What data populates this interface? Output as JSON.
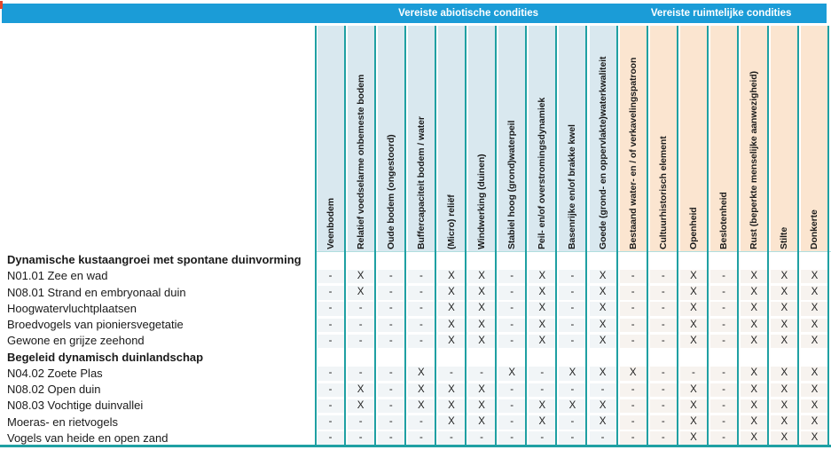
{
  "header": {
    "groups": [
      {
        "label": "Vereiste abiotische condities",
        "span": 10
      },
      {
        "label": "Vereiste ruimtelijke condities",
        "span": 7
      }
    ]
  },
  "columns": [
    "Veenbodem",
    "Relatief voedselarme onbemeste bodem",
    "Oude bodem (ongestoord)",
    "Buffercapaciteit bodem / water",
    "(Micro) reliëf",
    "Windwerking (duinen)",
    "Stabiel hoog (grond)waterpeil",
    "Peil- en/of overstromingsdynamiek",
    "Basenrijke en/of brakke kwel",
    "Goede (grond- en oppervlakte)waterkwaliteit",
    "Bestaand water- en / of verkavelingspatroon",
    "Cultuurhistorisch element",
    "Openheid",
    "Beslotenheid",
    "Rust (beperkte menselijke aanwezigheid)",
    "Stilte",
    "Donkerte"
  ],
  "rows": [
    {
      "type": "group",
      "label": "Dynamische kustaangroei met spontane duinvorming"
    },
    {
      "type": "data",
      "label": "N01.01 Zee en wad",
      "values": [
        "-",
        "X",
        "-",
        "-",
        "X",
        "X",
        "-",
        "X",
        "-",
        "X",
        "-",
        "-",
        "X",
        "-",
        "X",
        "X",
        "X"
      ]
    },
    {
      "type": "data",
      "label": "N08.01 Strand en embryonaal duin",
      "values": [
        "-",
        "X",
        "-",
        "-",
        "X",
        "X",
        "-",
        "X",
        "-",
        "X",
        "-",
        "-",
        "X",
        "-",
        "X",
        "X",
        "X"
      ]
    },
    {
      "type": "data",
      "label": "Hoogwatervluchtplaatsen",
      "values": [
        "-",
        "-",
        "-",
        "-",
        "X",
        "X",
        "-",
        "X",
        "-",
        "X",
        "-",
        "-",
        "X",
        "-",
        "X",
        "X",
        "X"
      ]
    },
    {
      "type": "data",
      "label": "Broedvogels van pioniersvegetatie",
      "values": [
        "-",
        "-",
        "-",
        "-",
        "X",
        "X",
        "-",
        "X",
        "-",
        "X",
        "-",
        "-",
        "X",
        "-",
        "X",
        "X",
        "X"
      ]
    },
    {
      "type": "data",
      "label": "Gewone en grijze zeehond",
      "values": [
        "-",
        "-",
        "-",
        "-",
        "X",
        "X",
        "-",
        "X",
        "-",
        "X",
        "-",
        "-",
        "X",
        "-",
        "X",
        "X",
        "X"
      ]
    },
    {
      "type": "group",
      "label": "Begeleid dynamisch duinlandschap"
    },
    {
      "type": "data",
      "label": "N04.02 Zoete Plas",
      "values": [
        "-",
        "-",
        "-",
        "X",
        "-",
        "-",
        "X",
        "-",
        "X",
        "X",
        "X",
        "-",
        "-",
        "-",
        "X",
        "X",
        "X"
      ]
    },
    {
      "type": "data",
      "label": "N08.02 Open duin",
      "values": [
        "-",
        "X",
        "-",
        "X",
        "X",
        "X",
        "-",
        "-",
        "-",
        "-",
        "-",
        "-",
        "X",
        "-",
        "X",
        "X",
        "X"
      ]
    },
    {
      "type": "data",
      "label": "N08.03 Vochtige duinvallei",
      "values": [
        "-",
        "X",
        "-",
        "X",
        "X",
        "X",
        "-",
        "X",
        "X",
        "X",
        "-",
        "-",
        "X",
        "-",
        "X",
        "X",
        "X"
      ]
    },
    {
      "type": "data",
      "label": "Moeras- en rietvogels",
      "values": [
        "-",
        "-",
        "-",
        "-",
        "X",
        "X",
        "-",
        "X",
        "-",
        "X",
        "-",
        "-",
        "X",
        "-",
        "X",
        "X",
        "X"
      ]
    },
    {
      "type": "data",
      "label": "Vogels van heide en open zand",
      "values": [
        "-",
        "-",
        "-",
        "-",
        "-",
        "-",
        "-",
        "-",
        "-",
        "-",
        "-",
        "-",
        "X",
        "-",
        "X",
        "X",
        "X"
      ]
    }
  ],
  "colors": {
    "band_blue": "#1B9CD7",
    "teal_line": "#1FA0A3",
    "abiotic_header_fill": "#D9E8EF",
    "ruimtelijk_header_fill": "#FBE5D0",
    "abiotic_cell_fill": "#F1F5F7",
    "ruimtelijk_cell_fill": "#F7F3EF",
    "text": "#1A1A1A",
    "band_text": "#FFFFFF",
    "artifact_red": "#E0472B"
  }
}
